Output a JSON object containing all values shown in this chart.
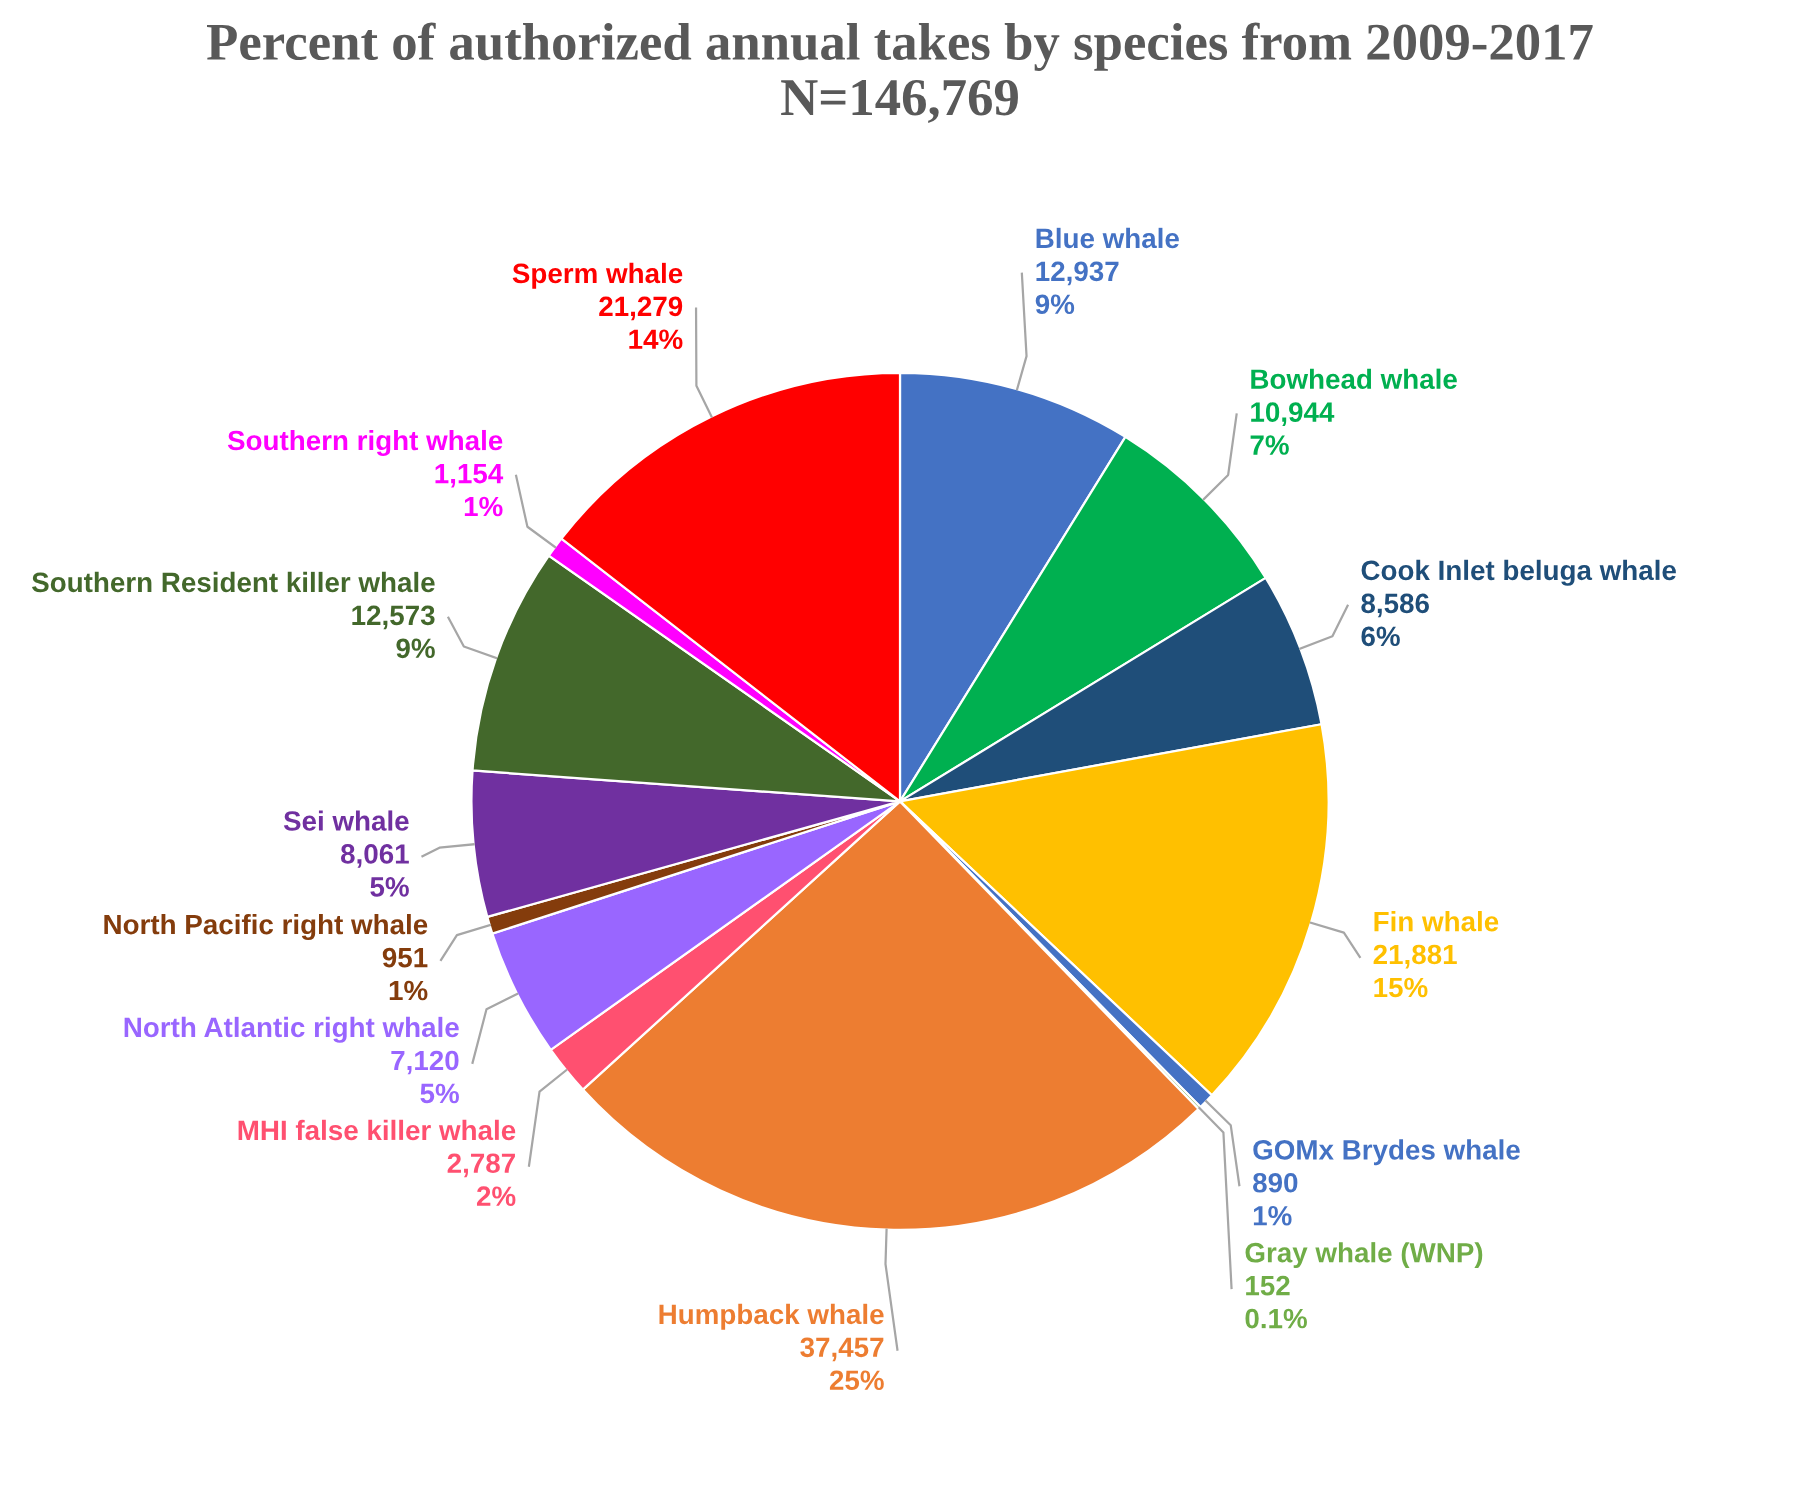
{
  "chart_data": {
    "type": "pie",
    "title": "Percent of authorized annual takes by species from 2009-2017",
    "subtitle": "N=146,769",
    "categories": [
      "Blue whale",
      "Bowhead whale",
      "Cook Inlet beluga whale",
      "Fin whale",
      "GOMx Brydes whale",
      "Gray whale (WNP)",
      "Humpback whale",
      "MHI false killer whale",
      "North Atlantic right whale",
      "North Pacific right whale",
      "Sei whale",
      "Southern Resident killer whale",
      "Southern right whale",
      "Sperm whale"
    ],
    "values": [
      12937,
      10944,
      8586,
      21881,
      890,
      152,
      37457,
      2787,
      7120,
      951,
      8061,
      12573,
      1154,
      21279
    ],
    "value_labels": [
      "12,937\n9%",
      "10,944\n7%",
      "8,586\n6%",
      "21,881\n15%",
      "890\n1%",
      "152\n0.1%",
      "37,457\n25%",
      "2,787\n2%",
      "7,120\n5%",
      "951\n1%",
      "8,061\n5%",
      "12,573\n9%",
      "1,154\n1%",
      "21,279\n14%"
    ],
    "colors": [
      "#4472c4",
      "#00b050",
      "#1f4e79",
      "#ffc000",
      "#4472c4",
      "#70ad47",
      "#ed7d31",
      "#ff5070",
      "#9966ff",
      "#843c0c",
      "#7030a0",
      "#43682b",
      "#ff00ff",
      "#ff0000"
    ]
  }
}
